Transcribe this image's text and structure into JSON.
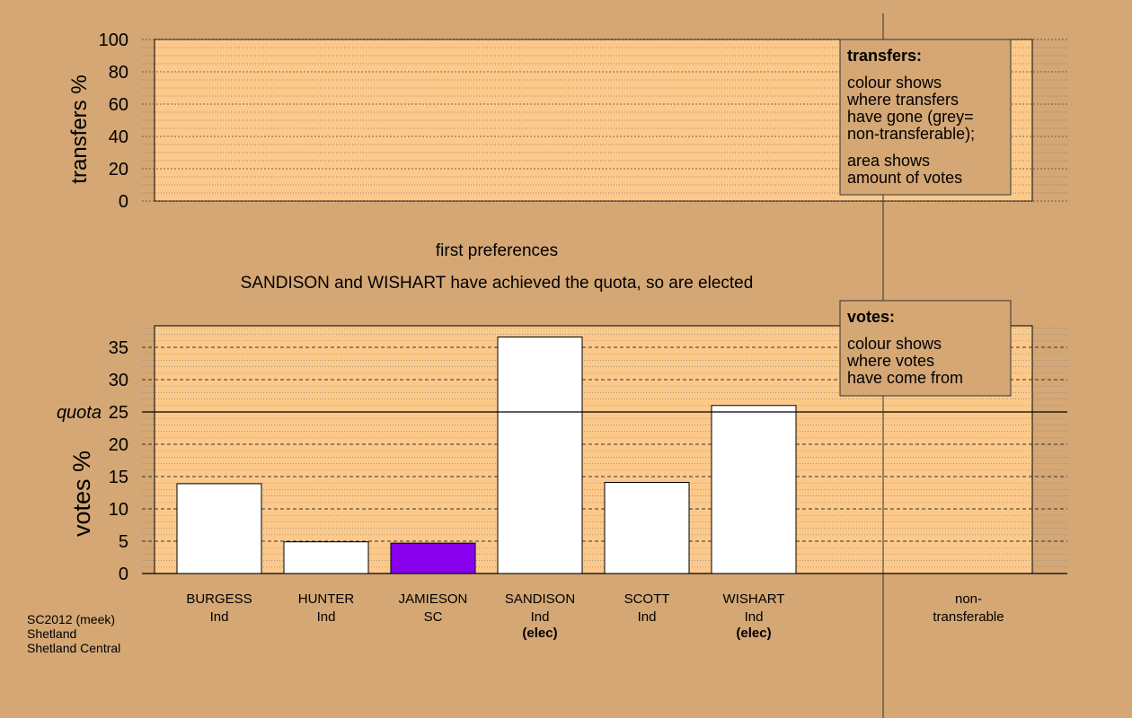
{
  "colors": {
    "background": "#d4a774",
    "plot_fill": "#fdc98a",
    "bar_default": "#ffffff",
    "bar_sc": "#8800ee",
    "legend_box": "#d4a774"
  },
  "chart_data": [
    {
      "type": "bar",
      "name": "transfers",
      "ylabel": "transfers %",
      "ylim": [
        0,
        100
      ],
      "yticks": [
        0,
        20,
        40,
        60,
        80,
        100
      ],
      "minor_grid_step": 5,
      "values": [],
      "legend": {
        "title": "transfers:",
        "lines": [
          "colour shows",
          "where transfers",
          "have gone (grey=",
          "non-transferable);"
        ],
        "lines2": [
          "area shows",
          "amount of votes"
        ]
      }
    },
    {
      "type": "bar",
      "name": "votes",
      "ylabel": "votes %",
      "ylim": [
        0,
        38.5
      ],
      "yticks": [
        0,
        5,
        10,
        15,
        20,
        25,
        30,
        35
      ],
      "minor_grid_step": 1,
      "quota": 25,
      "quota_label": "quota",
      "categories": [
        {
          "name": "BURGESS",
          "party": "Ind",
          "value": 13.9,
          "status": "",
          "color": "#ffffff"
        },
        {
          "name": "HUNTER",
          "party": "Ind",
          "value": 4.9,
          "status": "",
          "color": "#ffffff"
        },
        {
          "name": "JAMIESON",
          "party": "SC",
          "value": 4.7,
          "status": "",
          "color": "#8800ee"
        },
        {
          "name": "SANDISON",
          "party": "Ind",
          "value": 36.6,
          "status": "(elec)",
          "color": "#ffffff"
        },
        {
          "name": "SCOTT",
          "party": "Ind",
          "value": 14.1,
          "status": "",
          "color": "#ffffff"
        },
        {
          "name": "WISHART",
          "party": "Ind",
          "value": 26.0,
          "status": "(elec)",
          "color": "#ffffff"
        }
      ],
      "nontransferable_label": [
        "non-",
        "transferable"
      ],
      "legend": {
        "title": "votes:",
        "lines": [
          "colour shows",
          "where votes",
          "have come from"
        ]
      }
    }
  ],
  "stage_title": "first preferences",
  "stage_subtitle": "SANDISON and WISHART have achieved the quota, so are elected",
  "footer": [
    "SC2012 (meek)",
    "Shetland",
    "Shetland Central"
  ]
}
